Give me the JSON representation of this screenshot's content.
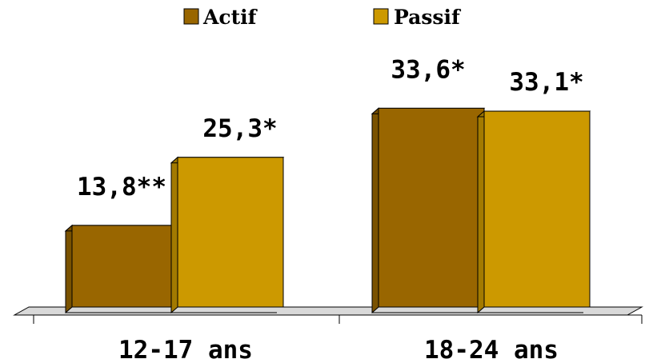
{
  "chart_data": {
    "type": "bar",
    "categories": [
      "12-17 ans",
      "18-24 ans"
    ],
    "series": [
      {
        "name": "Actif",
        "color": "#996600",
        "values": [
          13.8,
          33.6
        ],
        "labels": [
          "13,8**",
          "33,6*"
        ]
      },
      {
        "name": "Passif",
        "color": "#CC9900",
        "values": [
          25.3,
          33.1
        ],
        "labels": [
          "25,3*",
          "33,1*"
        ]
      }
    ],
    "ylim": [
      0,
      40
    ],
    "grid": false,
    "legend": "top-center",
    "style": "3d"
  }
}
